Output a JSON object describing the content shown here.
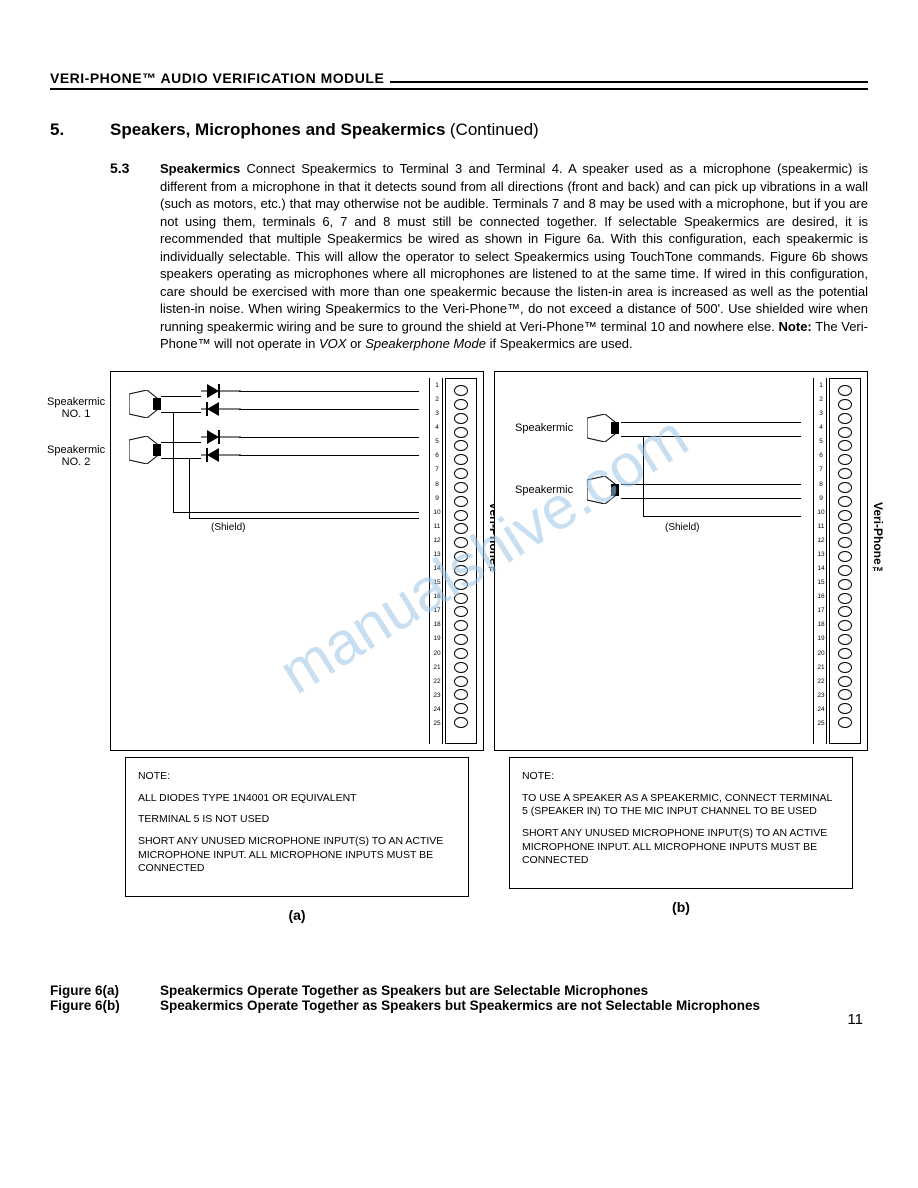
{
  "header": "VERI-PHONE™ AUDIO VERIFICATION MODULE",
  "section": {
    "num": "5.",
    "title": "Speakers, Microphones and Speakermics",
    "continued": "(Continued)"
  },
  "subsection": {
    "num": "5.3",
    "title": "Speakermics",
    "body_parts": {
      "p1": "Connect Speakermics to Terminal 3 and Terminal 4.  A speaker used as a microphone (speakermic) is different from a microphone in that it detects sound from all directions (front and back) and can pick up vibrations in a wall (such as motors, etc.) that may otherwise not be audible.   Terminals 7 and 8 may be used with a microphone, but if you are not using them, terminals 6, 7 and 8 must still be connected together.  If selectable Speakermics are desired, it is recommended that multiple Speakermics be wired as shown in Figure 6a.  With this configuration, each speakermic is individually selectable.   This will allow the operator to select Speakermics using  TouchTone commands.  Figure 6b shows speakers operating as microphones where all microphones are listened to at the same time.  If wired  in this configuration, care should be exercised with more than one speakermic because the listen-in area is increased as well as the potential listen-in noise.  When wiring Speakermics to the Veri-Phone™,  do not exceed a distance of 500'. Use shielded wire when running speakermic wiring and be sure to ground the shield at Veri-Phone™ terminal 10 and nowhere else.   ",
      "note_label": "Note:",
      "note_text1": " The Veri-Phone™ will not operate in ",
      "vox": "VOX",
      "or": " or ",
      "mode": "Speakerphone Mode",
      "note_text2": " if Speakermics are used."
    }
  },
  "diagram_a": {
    "labels": {
      "spk1": "Speakermic\nNO. 1",
      "spk2": "Speakermic\nNO. 2",
      "shield": "(Shield)",
      "vp": "Veri-Phone™"
    },
    "note": {
      "title": "NOTE:",
      "line1": "ALL DIODES TYPE 1N4001 OR EQUIVALENT",
      "line2": "TERMINAL 5 IS NOT USED",
      "line3": "SHORT ANY UNUSED MICROPHONE INPUT(S) TO AN ACTIVE MICROPHONE INPUT.  ALL MICROPHONE INPUTS MUST BE CONNECTED"
    },
    "caption": "(a)"
  },
  "diagram_b": {
    "labels": {
      "spk1": "Speakermic",
      "spk2": "Speakermic",
      "shield": "(Shield)",
      "vp": "Veri-Phone™"
    },
    "note": {
      "title": "NOTE:",
      "line1": "TO USE A SPEAKER AS A SPEAKERMIC, CONNECT TERMINAL 5 (SPEAKER IN) TO THE MIC INPUT CHANNEL TO BE USED",
      "line2": "SHORT ANY UNUSED MICROPHONE INPUT(S) TO AN ACTIVE MICROPHONE INPUT.  ALL MICROPHONE INPUTS MUST BE CONNECTED"
    },
    "caption": "(b)"
  },
  "figures": {
    "a_label": "Figure 6(a)",
    "a_text": "Speakermics Operate Together as Speakers but are Selectable Microphones",
    "b_label": "Figure 6(b)",
    "b_text": "Speakermics Operate Together as Speakers but Speakermics are not Selectable Microphones"
  },
  "watermark": "manualshive.com",
  "page_num": "11",
  "terminal_numbers": [
    "1",
    "2",
    "3",
    "4",
    "5",
    "6",
    "7",
    "8",
    "9",
    "10",
    "11",
    "12",
    "13",
    "14",
    "15",
    "16",
    "17",
    "18",
    "19",
    "20",
    "21",
    "22",
    "23",
    "24",
    "25"
  ]
}
